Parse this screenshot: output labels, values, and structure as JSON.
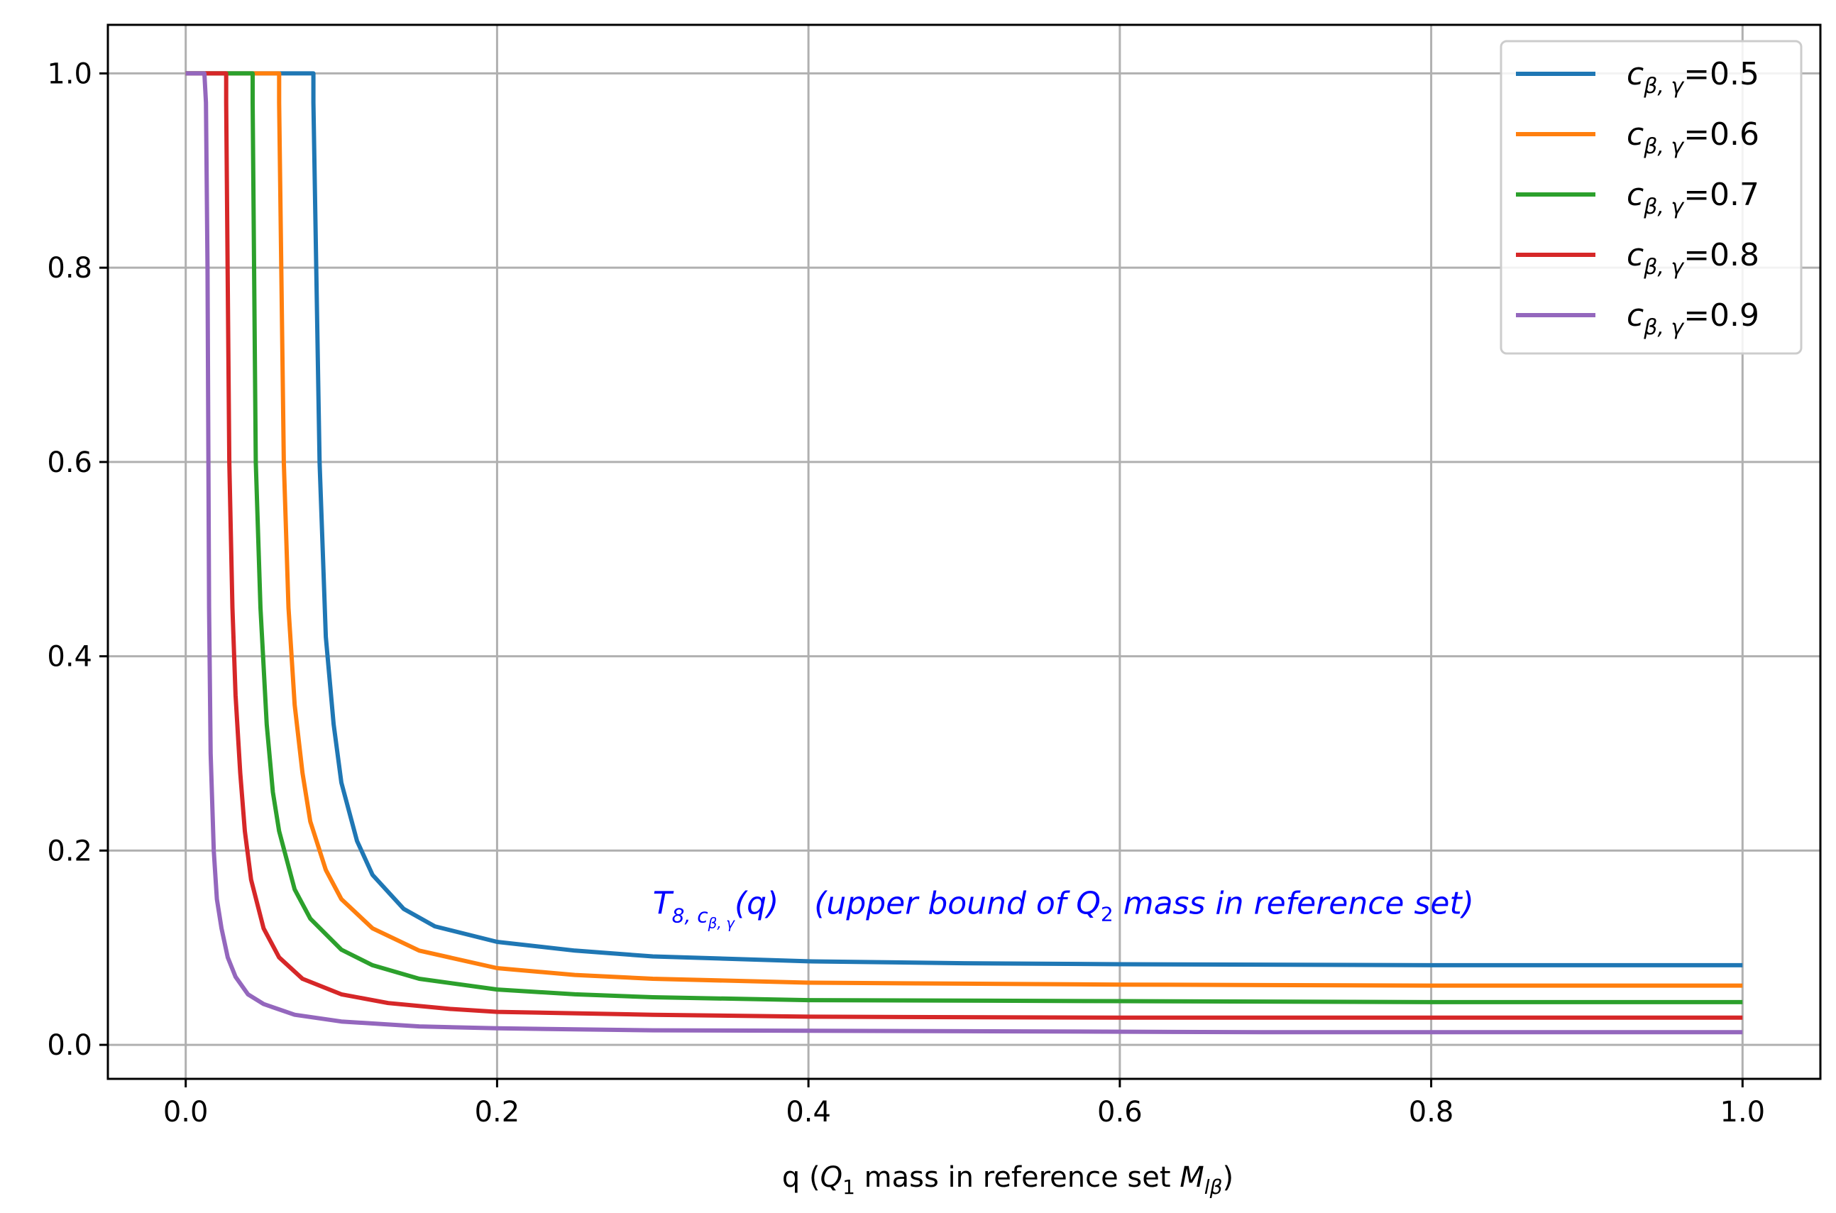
{
  "chart_data": {
    "type": "line",
    "title": "",
    "xlabel": "q (Q1 mass in reference set M_lβ)",
    "xlabel_parts": {
      "pre": "q (",
      "q": "Q",
      "q_sub": "1",
      "mid": " mass in reference set ",
      "m": "M",
      "m_sub": "lβ",
      "post": ")"
    },
    "ylabel": "",
    "xlim": [
      -0.05,
      1.05
    ],
    "ylim": [
      -0.035,
      1.05
    ],
    "xticks": [
      0.0,
      0.2,
      0.4,
      0.6,
      0.8,
      1.0
    ],
    "yticks": [
      0.0,
      0.2,
      0.4,
      0.6,
      0.8,
      1.0
    ],
    "xtick_labels": [
      "0.0",
      "0.2",
      "0.4",
      "0.6",
      "0.8",
      "1.0"
    ],
    "ytick_labels": [
      "0.0",
      "0.2",
      "0.4",
      "0.6",
      "0.8",
      "1.0"
    ],
    "grid": true,
    "legend_position": "top-right",
    "series": [
      {
        "name": "c_β,γ=0.5",
        "legend_value": "=0.5",
        "color": "#1f77b4",
        "plateau_end_q": 0.082,
        "floor": 0.082,
        "points": [
          [
            0.0,
            1.0
          ],
          [
            0.082,
            1.0
          ],
          [
            0.082,
            0.97
          ],
          [
            0.086,
            0.6
          ],
          [
            0.09,
            0.42
          ],
          [
            0.095,
            0.33
          ],
          [
            0.1,
            0.27
          ],
          [
            0.11,
            0.21
          ],
          [
            0.12,
            0.175
          ],
          [
            0.14,
            0.14
          ],
          [
            0.16,
            0.122
          ],
          [
            0.2,
            0.106
          ],
          [
            0.25,
            0.097
          ],
          [
            0.3,
            0.091
          ],
          [
            0.4,
            0.086
          ],
          [
            0.5,
            0.084
          ],
          [
            0.6,
            0.083
          ],
          [
            0.8,
            0.082
          ],
          [
            1.0,
            0.082
          ]
        ]
      },
      {
        "name": "c_β,γ=0.6",
        "legend_value": "=0.6",
        "color": "#ff7f0e",
        "plateau_end_q": 0.06,
        "floor": 0.061,
        "points": [
          [
            0.0,
            1.0
          ],
          [
            0.06,
            1.0
          ],
          [
            0.06,
            0.97
          ],
          [
            0.063,
            0.6
          ],
          [
            0.066,
            0.45
          ],
          [
            0.07,
            0.35
          ],
          [
            0.075,
            0.28
          ],
          [
            0.08,
            0.23
          ],
          [
            0.09,
            0.18
          ],
          [
            0.1,
            0.15
          ],
          [
            0.12,
            0.12
          ],
          [
            0.15,
            0.097
          ],
          [
            0.2,
            0.079
          ],
          [
            0.25,
            0.072
          ],
          [
            0.3,
            0.068
          ],
          [
            0.4,
            0.064
          ],
          [
            0.5,
            0.063
          ],
          [
            0.6,
            0.062
          ],
          [
            0.8,
            0.061
          ],
          [
            1.0,
            0.061
          ]
        ]
      },
      {
        "name": "c_β,γ=0.7",
        "legend_value": "=0.7",
        "color": "#2ca02c",
        "plateau_end_q": 0.043,
        "floor": 0.044,
        "points": [
          [
            0.0,
            1.0
          ],
          [
            0.043,
            1.0
          ],
          [
            0.043,
            0.97
          ],
          [
            0.045,
            0.6
          ],
          [
            0.048,
            0.45
          ],
          [
            0.052,
            0.33
          ],
          [
            0.056,
            0.26
          ],
          [
            0.06,
            0.22
          ],
          [
            0.07,
            0.16
          ],
          [
            0.08,
            0.13
          ],
          [
            0.1,
            0.098
          ],
          [
            0.12,
            0.082
          ],
          [
            0.15,
            0.068
          ],
          [
            0.2,
            0.057
          ],
          [
            0.25,
            0.052
          ],
          [
            0.3,
            0.049
          ],
          [
            0.4,
            0.046
          ],
          [
            0.6,
            0.045
          ],
          [
            0.8,
            0.044
          ],
          [
            1.0,
            0.044
          ]
        ]
      },
      {
        "name": "c_β,γ=0.8",
        "legend_value": "=0.8",
        "color": "#d62728",
        "plateau_end_q": 0.026,
        "floor": 0.028,
        "points": [
          [
            0.0,
            1.0
          ],
          [
            0.026,
            1.0
          ],
          [
            0.026,
            0.97
          ],
          [
            0.028,
            0.6
          ],
          [
            0.03,
            0.45
          ],
          [
            0.032,
            0.36
          ],
          [
            0.035,
            0.28
          ],
          [
            0.038,
            0.22
          ],
          [
            0.042,
            0.17
          ],
          [
            0.05,
            0.12
          ],
          [
            0.06,
            0.09
          ],
          [
            0.075,
            0.068
          ],
          [
            0.1,
            0.052
          ],
          [
            0.13,
            0.043
          ],
          [
            0.17,
            0.037
          ],
          [
            0.2,
            0.034
          ],
          [
            0.3,
            0.031
          ],
          [
            0.4,
            0.029
          ],
          [
            0.6,
            0.028
          ],
          [
            1.0,
            0.028
          ]
        ]
      },
      {
        "name": "c_β,γ=0.9",
        "legend_value": "=0.9",
        "color": "#9467bd",
        "plateau_end_q": 0.012,
        "floor": 0.013,
        "points": [
          [
            0.0,
            1.0
          ],
          [
            0.012,
            1.0
          ],
          [
            0.013,
            0.97
          ],
          [
            0.014,
            0.8
          ],
          [
            0.015,
            0.45
          ],
          [
            0.016,
            0.3
          ],
          [
            0.018,
            0.2
          ],
          [
            0.02,
            0.15
          ],
          [
            0.023,
            0.12
          ],
          [
            0.027,
            0.09
          ],
          [
            0.032,
            0.07
          ],
          [
            0.04,
            0.052
          ],
          [
            0.05,
            0.042
          ],
          [
            0.07,
            0.031
          ],
          [
            0.1,
            0.024
          ],
          [
            0.15,
            0.019
          ],
          [
            0.2,
            0.017
          ],
          [
            0.3,
            0.015
          ],
          [
            0.5,
            0.014
          ],
          [
            0.7,
            0.013
          ],
          [
            1.0,
            0.013
          ]
        ]
      }
    ],
    "annotation": {
      "text": "T_8,c_β,γ(q)   (upper bound of Q2 mass in reference set)",
      "t_main": "T",
      "t_sub": "8, c",
      "t_subsub": "β, γ",
      "arg": "(q)",
      "desc_pre": "(upper bound of ",
      "desc_q": "Q",
      "desc_q_sub": "2",
      "desc_post": " mass in reference set)",
      "x": 0.3,
      "y": 0.135,
      "color": "#0000ff"
    }
  }
}
